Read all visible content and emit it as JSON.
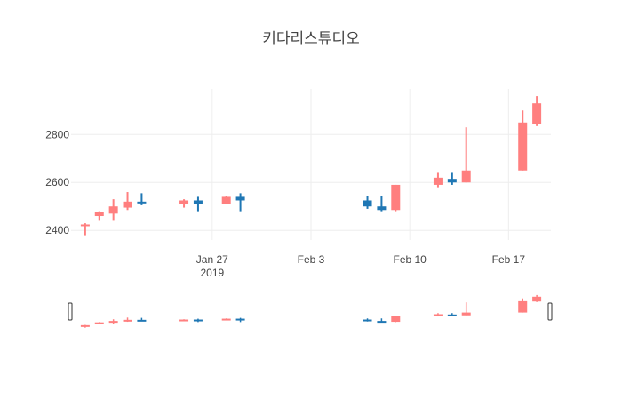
{
  "chart_data": {
    "type": "candlestick",
    "title": "키다리스튜디오",
    "xlabel": "",
    "ylabel": "",
    "x_range": [
      "2019-01-17",
      "2019-02-20"
    ],
    "y_range": [
      2360,
      2990
    ],
    "y_ticks": [
      2400,
      2600,
      2800
    ],
    "y_tick_labels": [
      "2400",
      "2600",
      "2800"
    ],
    "x_ticks": [
      "2019-01-27",
      "2019-02-03",
      "2019-02-10",
      "2019-02-17"
    ],
    "x_tick_labels": [
      "Jan 27",
      "Feb 3",
      "Feb 10",
      "Feb 17"
    ],
    "x_tick_year_label": "2019",
    "grid": true,
    "legend": "none",
    "increasing_color": "#ff7f7f",
    "decreasing_color": "#1f77b4",
    "rangeslider": true,
    "candles": [
      {
        "date": "2019-01-18",
        "open": 2420,
        "high": 2430,
        "low": 2380,
        "close": 2425,
        "dir": "increasing"
      },
      {
        "date": "2019-01-19",
        "open": 2460,
        "high": 2480,
        "low": 2440,
        "close": 2475,
        "dir": "increasing"
      },
      {
        "date": "2019-01-20",
        "open": 2470,
        "high": 2530,
        "low": 2440,
        "close": 2500,
        "dir": "increasing"
      },
      {
        "date": "2019-01-21",
        "open": 2495,
        "high": 2560,
        "low": 2485,
        "close": 2520,
        "dir": "increasing"
      },
      {
        "date": "2019-01-22",
        "open": 2520,
        "high": 2555,
        "low": 2505,
        "close": 2515,
        "dir": "decreasing"
      },
      {
        "date": "2019-01-25",
        "open": 2510,
        "high": 2530,
        "low": 2495,
        "close": 2525,
        "dir": "increasing"
      },
      {
        "date": "2019-01-26",
        "open": 2525,
        "high": 2540,
        "low": 2480,
        "close": 2510,
        "dir": "decreasing"
      },
      {
        "date": "2019-01-28",
        "open": 2510,
        "high": 2545,
        "low": 2510,
        "close": 2540,
        "dir": "increasing"
      },
      {
        "date": "2019-01-29",
        "open": 2540,
        "high": 2555,
        "low": 2480,
        "close": 2525,
        "dir": "decreasing"
      },
      {
        "date": "2019-02-07",
        "open": 2525,
        "high": 2545,
        "low": 2490,
        "close": 2500,
        "dir": "decreasing"
      },
      {
        "date": "2019-02-08",
        "open": 2500,
        "high": 2545,
        "low": 2480,
        "close": 2485,
        "dir": "decreasing"
      },
      {
        "date": "2019-02-09",
        "open": 2485,
        "high": 2590,
        "low": 2480,
        "close": 2590,
        "dir": "increasing"
      },
      {
        "date": "2019-02-12",
        "open": 2590,
        "high": 2640,
        "low": 2580,
        "close": 2620,
        "dir": "increasing"
      },
      {
        "date": "2019-02-13",
        "open": 2615,
        "high": 2640,
        "low": 2590,
        "close": 2600,
        "dir": "decreasing"
      },
      {
        "date": "2019-02-14",
        "open": 2600,
        "high": 2830,
        "low": 2600,
        "close": 2650,
        "dir": "increasing"
      },
      {
        "date": "2019-02-18",
        "open": 2650,
        "high": 2900,
        "low": 2650,
        "close": 2850,
        "dir": "increasing"
      },
      {
        "date": "2019-02-19",
        "open": 2845,
        "high": 2960,
        "low": 2835,
        "close": 2930,
        "dir": "increasing"
      }
    ]
  }
}
